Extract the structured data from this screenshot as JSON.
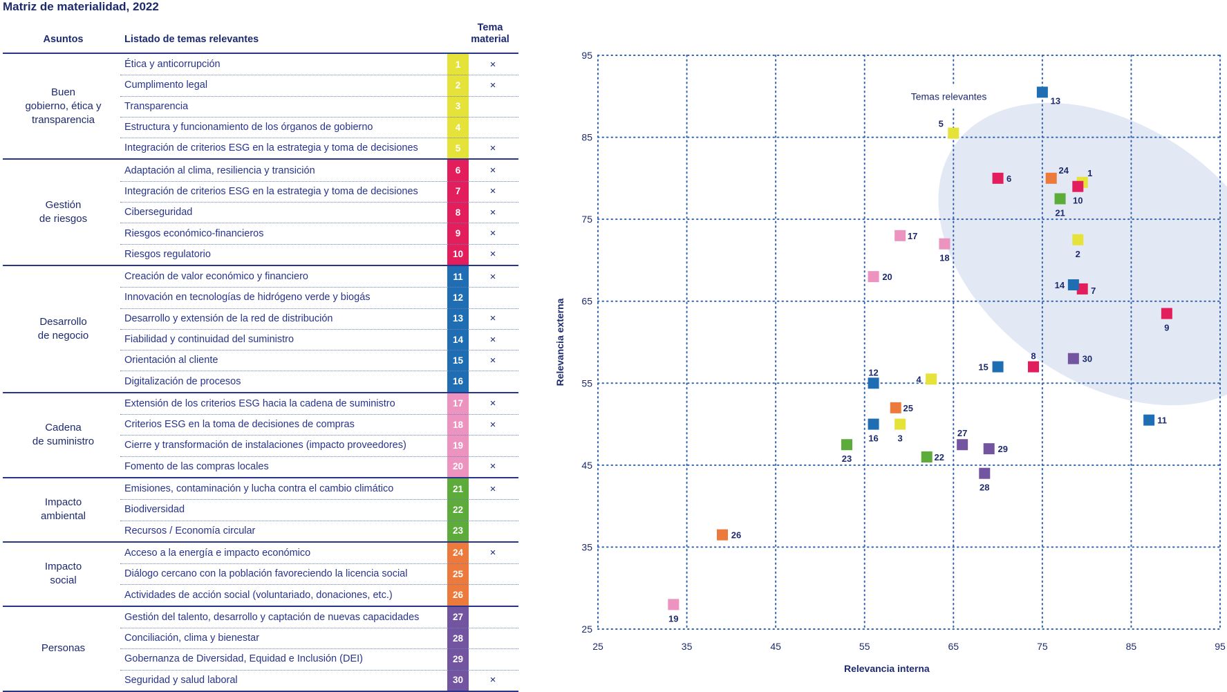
{
  "title": "Matriz de materialidad, 2022",
  "table": {
    "headers": {
      "asuntos": "Asuntos",
      "listado": "Listado de temas relevantes",
      "tema": "Tema material"
    },
    "mark_symbol": "×",
    "groups": [
      {
        "lines": [
          "Buen",
          "gobierno, ética y",
          "transparencia"
        ],
        "rows": [
          {
            "n": 1,
            "text": "Ética y anticorrupción",
            "material": true
          },
          {
            "n": 2,
            "text": "Cumplimento legal",
            "material": true
          },
          {
            "n": 3,
            "text": "Transparencia",
            "material": false
          },
          {
            "n": 4,
            "text": "Estructura y funcionamiento de los órganos de gobierno",
            "material": false
          },
          {
            "n": 5,
            "text": "Integración de criterios ESG en la estrategia y toma de decisiones",
            "material": true
          }
        ]
      },
      {
        "lines": [
          "Gestión",
          "de riesgos"
        ],
        "rows": [
          {
            "n": 6,
            "text": "Adaptación al clima, resiliencia y transición",
            "material": true
          },
          {
            "n": 7,
            "text": "Integración de criterios ESG en la estrategia y toma de decisiones",
            "material": true
          },
          {
            "n": 8,
            "text": "Ciberseguridad",
            "material": true
          },
          {
            "n": 9,
            "text": "Riesgos económico-financieros",
            "material": true
          },
          {
            "n": 10,
            "text": "Riesgos regulatorio",
            "material": true
          }
        ]
      },
      {
        "lines": [
          "Desarrollo",
          "de negocio"
        ],
        "rows": [
          {
            "n": 11,
            "text": "Creación de valor económico y financiero",
            "material": true
          },
          {
            "n": 12,
            "text": "Innovación en tecnologías de hidrógeno verde y biogás",
            "material": false
          },
          {
            "n": 13,
            "text": "Desarrollo y extensión de la red de distribución",
            "material": true
          },
          {
            "n": 14,
            "text": "Fiabilidad y continuidad del suministro",
            "material": true
          },
          {
            "n": 15,
            "text": "Orientación al cliente",
            "material": true
          },
          {
            "n": 16,
            "text": "Digitalización de procesos",
            "material": false
          }
        ]
      },
      {
        "lines": [
          "Cadena",
          "de suministro"
        ],
        "rows": [
          {
            "n": 17,
            "text": "Extensión de los criterios ESG hacia la cadena de suministro",
            "material": true
          },
          {
            "n": 18,
            "text": "Criterios ESG en la toma de decisiones de compras",
            "material": true
          },
          {
            "n": 19,
            "text": "Cierre y transformación de instalaciones (impacto proveedores)",
            "material": false
          },
          {
            "n": 20,
            "text": "Fomento de las compras locales",
            "material": true
          }
        ]
      },
      {
        "lines": [
          "Impacto",
          "ambiental"
        ],
        "rows": [
          {
            "n": 21,
            "text": "Emisiones, contaminación y lucha contra el cambio climático",
            "material": true
          },
          {
            "n": 22,
            "text": "Biodiversidad",
            "material": false
          },
          {
            "n": 23,
            "text": "Recursos / Economía circular",
            "material": false
          }
        ]
      },
      {
        "lines": [
          "Impacto",
          "social"
        ],
        "rows": [
          {
            "n": 24,
            "text": "Acceso a la energía e impacto económico",
            "material": true
          },
          {
            "n": 25,
            "text": "Diálogo cercano con la población favoreciendo la licencia social",
            "material": false
          },
          {
            "n": 26,
            "text": "Actividades de acción social (voluntariado, donaciones, etc.)",
            "material": false
          }
        ]
      },
      {
        "lines": [
          "Personas"
        ],
        "rows": [
          {
            "n": 27,
            "text": "Gestión del talento, desarrollo y captación de nuevas capacidades",
            "material": false
          },
          {
            "n": 28,
            "text": "Conciliación, clima y bienestar",
            "material": false
          },
          {
            "n": 29,
            "text": "Gobernanza de Diversidad, Equidad e Inclusión (DEI)",
            "material": false
          },
          {
            "n": 30,
            "text": "Seguridad y salud laboral",
            "material": true
          }
        ]
      }
    ]
  },
  "colors": {
    "yellow": "#e5e23a",
    "magenta": "#e21e5c",
    "blue": "#1f6db3",
    "pink": "#ec94bf",
    "green": "#5dab3a",
    "orange": "#ec7a3c",
    "purple": "#7354a0",
    "grid": "#2f62b0",
    "ellipse": "#e3e8f5",
    "text": "#1d2a6e"
  },
  "chart_data": {
    "type": "scatter",
    "xlabel": "Relevancia interna",
    "ylabel": "Relevancia externa",
    "xlim": [
      25,
      95
    ],
    "ylim": [
      25,
      95
    ],
    "xticks": [
      25,
      35,
      45,
      55,
      65,
      75,
      85,
      95
    ],
    "yticks": [
      25,
      35,
      45,
      55,
      65,
      75,
      85,
      95
    ],
    "grid": true,
    "annotation": "Temas relevantes",
    "points": [
      {
        "id": 1,
        "x": 79.5,
        "y": 79.5,
        "color": "yellow"
      },
      {
        "id": 2,
        "x": 79.0,
        "y": 72.5,
        "color": "yellow"
      },
      {
        "id": 3,
        "x": 59.0,
        "y": 50.0,
        "color": "yellow"
      },
      {
        "id": 4,
        "x": 62.5,
        "y": 55.5,
        "color": "yellow"
      },
      {
        "id": 5,
        "x": 65.0,
        "y": 85.5,
        "color": "yellow"
      },
      {
        "id": 6,
        "x": 70.0,
        "y": 80.0,
        "color": "magenta"
      },
      {
        "id": 7,
        "x": 79.5,
        "y": 66.5,
        "color": "magenta"
      },
      {
        "id": 8,
        "x": 74.0,
        "y": 57.0,
        "color": "magenta"
      },
      {
        "id": 9,
        "x": 89.0,
        "y": 63.5,
        "color": "magenta"
      },
      {
        "id": 10,
        "x": 79.0,
        "y": 79.0,
        "color": "magenta"
      },
      {
        "id": 11,
        "x": 87.0,
        "y": 50.5,
        "color": "blue"
      },
      {
        "id": 12,
        "x": 56.0,
        "y": 55.0,
        "color": "blue"
      },
      {
        "id": 13,
        "x": 75.0,
        "y": 90.5,
        "color": "blue"
      },
      {
        "id": 14,
        "x": 78.5,
        "y": 67.0,
        "color": "blue"
      },
      {
        "id": 15,
        "x": 70.0,
        "y": 57.0,
        "color": "blue"
      },
      {
        "id": 16,
        "x": 56.0,
        "y": 50.0,
        "color": "blue"
      },
      {
        "id": 17,
        "x": 59.0,
        "y": 73.0,
        "color": "pink"
      },
      {
        "id": 18,
        "x": 64.0,
        "y": 72.0,
        "color": "pink"
      },
      {
        "id": 19,
        "x": 33.5,
        "y": 28.0,
        "color": "pink"
      },
      {
        "id": 20,
        "x": 56.0,
        "y": 68.0,
        "color": "pink"
      },
      {
        "id": 21,
        "x": 77.0,
        "y": 77.5,
        "color": "green"
      },
      {
        "id": 22,
        "x": 62.0,
        "y": 46.0,
        "color": "green"
      },
      {
        "id": 23,
        "x": 53.0,
        "y": 47.5,
        "color": "green"
      },
      {
        "id": 24,
        "x": 76.0,
        "y": 80.0,
        "color": "orange"
      },
      {
        "id": 25,
        "x": 58.5,
        "y": 52.0,
        "color": "orange"
      },
      {
        "id": 26,
        "x": 39.0,
        "y": 36.5,
        "color": "orange"
      },
      {
        "id": 27,
        "x": 66.0,
        "y": 47.5,
        "color": "purple"
      },
      {
        "id": 28,
        "x": 68.5,
        "y": 44.0,
        "color": "purple"
      },
      {
        "id": 29,
        "x": 69.0,
        "y": 47.0,
        "color": "purple"
      },
      {
        "id": 30,
        "x": 78.5,
        "y": 58.0,
        "color": "purple"
      }
    ]
  }
}
